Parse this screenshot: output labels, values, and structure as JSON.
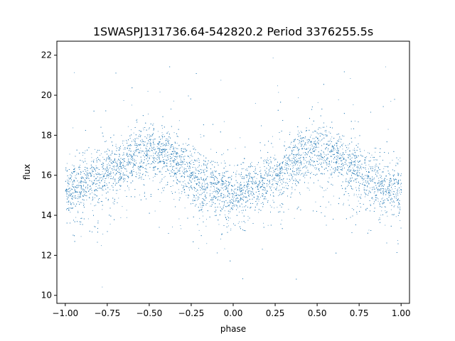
{
  "chart_data": {
    "type": "scatter",
    "title": "1SWASPJ131736.64-542820.2 Period 3376255.5s",
    "xlabel": "phase",
    "ylabel": "flux",
    "xlim": [
      -1.05,
      1.05
    ],
    "ylim": [
      9.6,
      22.7
    ],
    "xticks": [
      -1.0,
      -0.75,
      -0.5,
      -0.25,
      0.0,
      0.25,
      0.5,
      0.75,
      1.0
    ],
    "xtick_labels": [
      "−1.00",
      "−0.75",
      "−0.50",
      "−0.25",
      "0.00",
      "0.25",
      "0.50",
      "0.75",
      "1.00"
    ],
    "yticks": [
      10,
      12,
      14,
      16,
      18,
      20,
      22
    ],
    "ytick_labels": [
      "10",
      "12",
      "14",
      "16",
      "18",
      "20",
      "22"
    ],
    "grid": false,
    "marker_color": "#1f77b4",
    "series": [
      {
        "name": "",
        "trend": {
          "x": [
            -1.0,
            -0.9,
            -0.8,
            -0.7,
            -0.6,
            -0.5,
            -0.4,
            -0.3,
            -0.2,
            -0.1,
            0.0,
            0.1,
            0.2,
            0.3,
            0.4,
            0.5,
            0.6,
            0.7,
            0.8,
            0.9,
            1.0
          ],
          "y": [
            15.2,
            15.4,
            15.9,
            16.4,
            16.9,
            17.2,
            17.0,
            16.3,
            15.6,
            15.3,
            15.0,
            15.3,
            15.7,
            16.3,
            16.9,
            17.2,
            17.0,
            16.4,
            15.8,
            15.4,
            15.2
          ]
        },
        "point_count": 9000
      }
    ]
  }
}
